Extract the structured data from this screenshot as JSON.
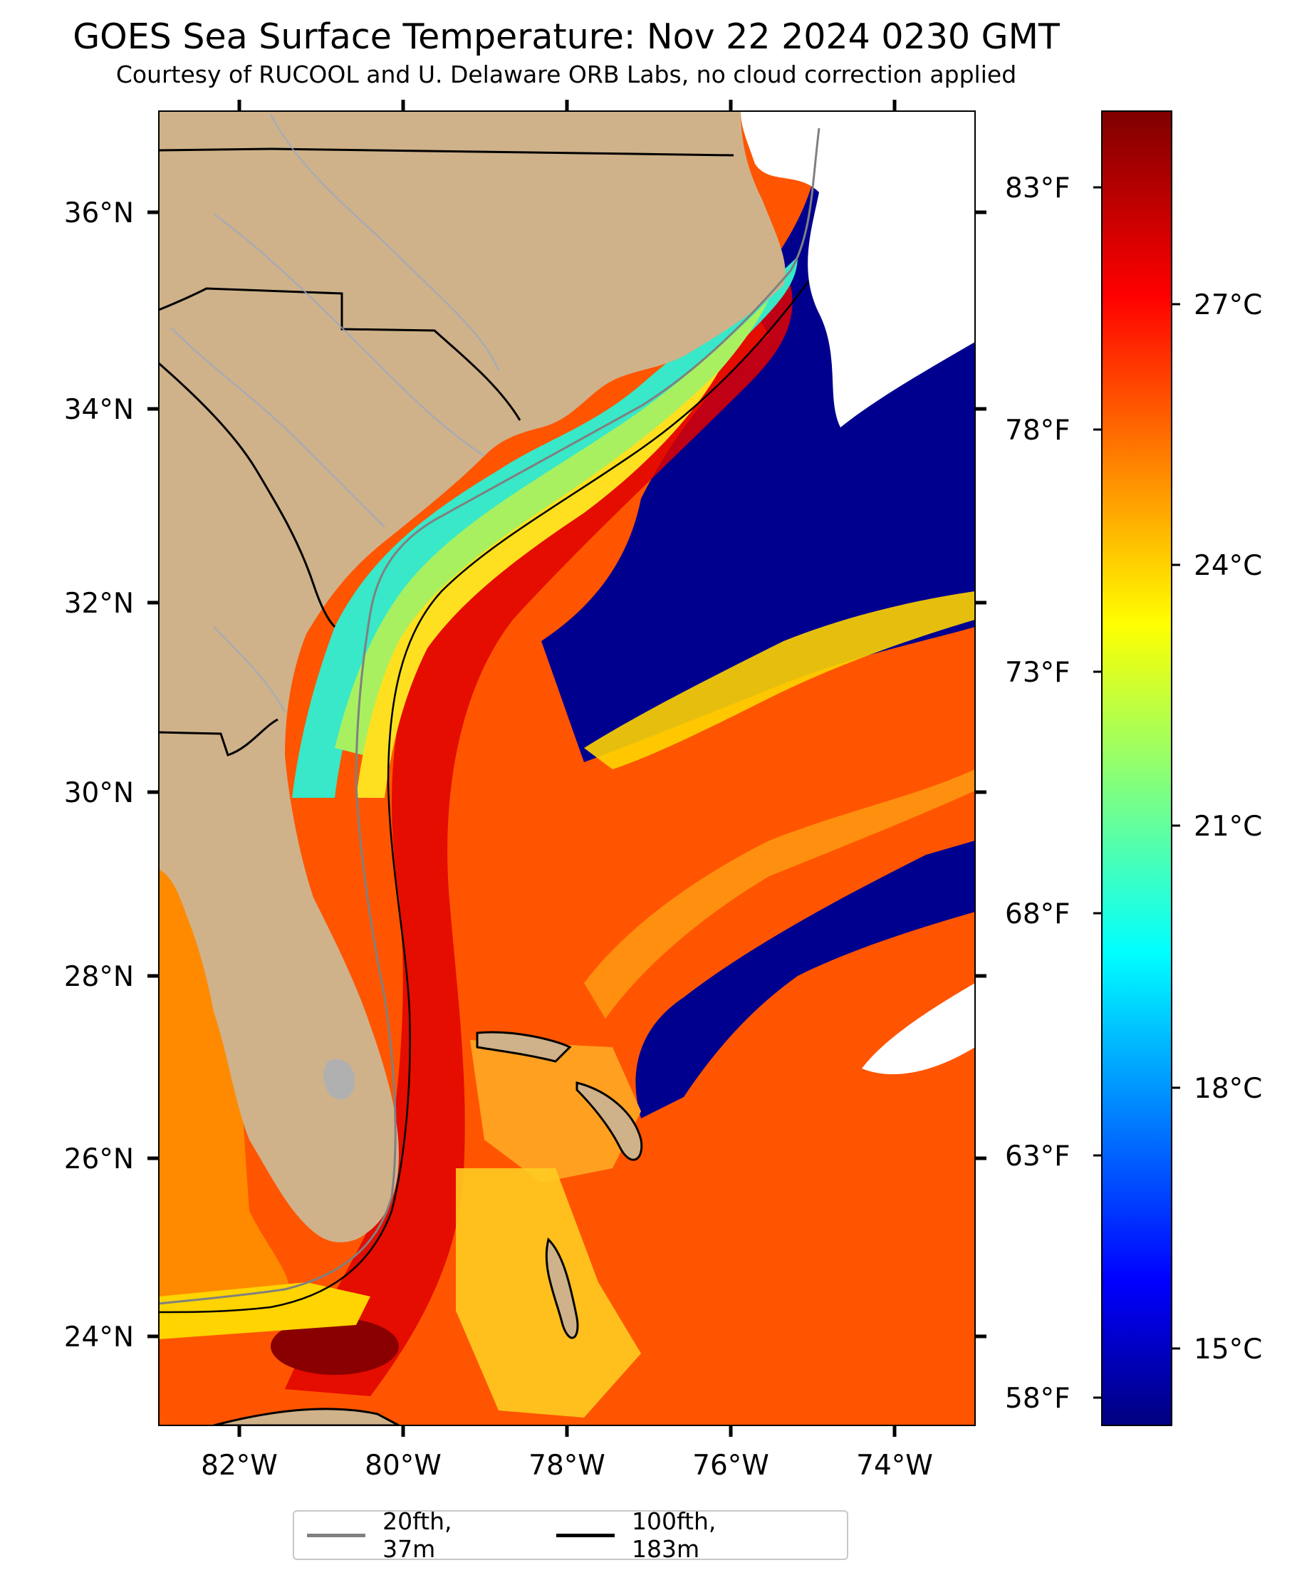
{
  "title": "GOES Sea Surface Temperature: Nov 22 2024 0230 GMT",
  "subtitle": "Courtesy of RUCOOL and U. Delaware ORB Labs, no cloud correction applied",
  "map": {
    "lon_range": [
      -83,
      -73
    ],
    "lat_range": [
      23.1,
      37
    ],
    "land_color": "#cfb28a",
    "cloud_color": "#ffffff",
    "x_tick_labels": [
      "82°W",
      "80°W",
      "78°W",
      "76°W",
      "74°W"
    ],
    "y_tick_labels": [
      "36°N",
      "34°N",
      "32°N",
      "30°N",
      "28°N",
      "26°N",
      "24°N"
    ]
  },
  "colorbar": {
    "colormap": "jet",
    "celsius_range": [
      13.5,
      29.5
    ],
    "celsius_labels": [
      "27°C",
      "24°C",
      "21°C",
      "18°C",
      "15°C"
    ],
    "fahrenheit_labels": [
      "83°F",
      "78°F",
      "73°F",
      "68°F",
      "63°F",
      "58°F"
    ]
  },
  "legend": {
    "items": [
      {
        "label": "20fth, 37m",
        "color": "#808080"
      },
      {
        "label": "100fth, 183m",
        "color": "#000000"
      }
    ]
  }
}
